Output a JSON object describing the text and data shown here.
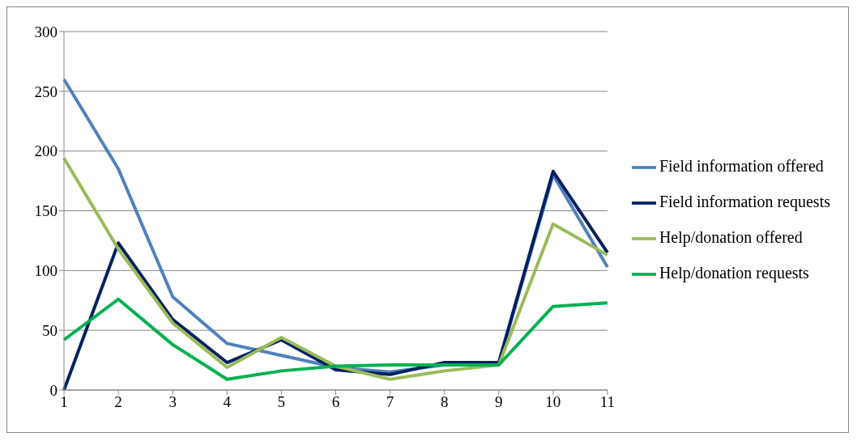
{
  "chart_data": {
    "type": "line",
    "categories": [
      "1",
      "2",
      "3",
      "4",
      "5",
      "6",
      "7",
      "8",
      "9",
      "10",
      "11"
    ],
    "series": [
      {
        "name": "Field information offered",
        "color": "#4f81bd",
        "values": [
          260,
          185,
          78,
          39,
          29,
          19,
          15,
          21,
          22,
          180,
          103
        ]
      },
      {
        "name": "Field information requests",
        "color": "#002060",
        "values": [
          0,
          123,
          59,
          23,
          42,
          17,
          13,
          23,
          23,
          183,
          115
        ]
      },
      {
        "name": "Help/donation offered",
        "color": "#9bbb59",
        "values": [
          194,
          118,
          56,
          19,
          44,
          20,
          9,
          16,
          21,
          139,
          113
        ]
      },
      {
        "name": "Help/donation requests",
        "color": "#00b050",
        "values": [
          42,
          76,
          38,
          9,
          16,
          20,
          21,
          21,
          21,
          70,
          73
        ]
      }
    ],
    "ylim": [
      0,
      300
    ],
    "yticks": [
      0,
      50,
      100,
      150,
      200,
      250,
      300
    ],
    "grid": "y",
    "legend": "right",
    "marker": "none",
    "line_style": "solid"
  }
}
